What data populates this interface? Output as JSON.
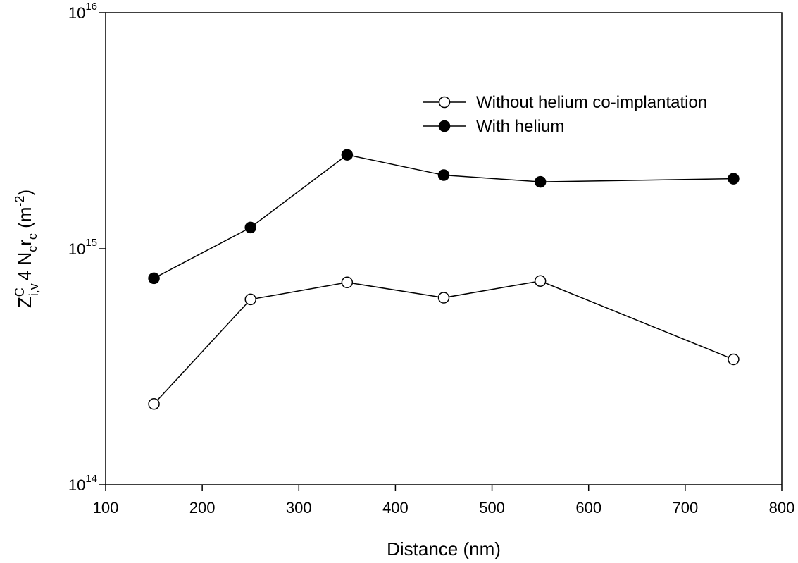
{
  "chart_data": {
    "type": "line",
    "title": "",
    "xlabel": "Distance (nm)",
    "ylabel_parts": {
      "main": "Z",
      "sup1": "C",
      "sub1": "i,v",
      "mid": "4  N",
      "sub2": "c",
      "r": "r",
      "sub3": "c",
      "unit_open": " (m",
      "unit_exp": "-2",
      "unit_close": ")"
    },
    "y_scale": "log",
    "xlim": [
      100,
      800
    ],
    "ylim": [
      100000000000000.0,
      1e+16
    ],
    "x_ticks": [
      100,
      200,
      300,
      400,
      500,
      600,
      700,
      800
    ],
    "y_ticks": [
      {
        "value": 100000000000000.0,
        "base": "10",
        "exp": "14"
      },
      {
        "value": 1000000000000000.0,
        "base": "10",
        "exp": "15"
      },
      {
        "value": 1e+16,
        "base": "10",
        "exp": "16"
      }
    ],
    "grid": false,
    "legend_position": "top-right",
    "series": [
      {
        "name": "Without helium co-implantation",
        "marker": "open-circle",
        "x": [
          150,
          250,
          350,
          450,
          550,
          750
        ],
        "y": [
          220000000000000.0,
          610000000000000.0,
          720000000000000.0,
          620000000000000.0,
          730000000000000.0,
          340000000000000.0
        ]
      },
      {
        "name": "With helium",
        "marker": "filled-circle",
        "x": [
          150,
          250,
          350,
          450,
          550,
          750
        ],
        "y": [
          750000000000000.0,
          1230000000000000.0,
          2500000000000000.0,
          2050000000000000.0,
          1920000000000000.0,
          1980000000000000.0
        ]
      }
    ]
  }
}
